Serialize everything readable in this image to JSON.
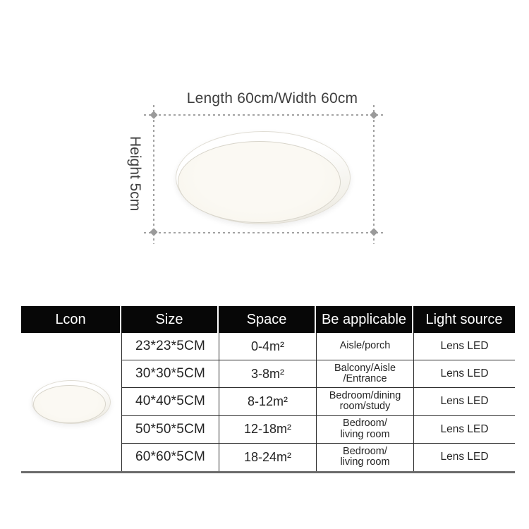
{
  "diagram": {
    "length_label": "Length 60cm/Width 60cm",
    "height_label": "Height 5cm",
    "image": "ceiling-lamp",
    "dash_color": "#a2a2a2",
    "marker_color": "#9a9a9a"
  },
  "table": {
    "headers": [
      "Lcon",
      "Size",
      "Space",
      "Be applicable",
      "Light source"
    ],
    "icon_cell_icon": "ceiling-lamp",
    "rows": [
      {
        "size": "23*23*5CM",
        "space": "0-4m²",
        "applicable": "Aisle/porch",
        "light": "Lens LED"
      },
      {
        "size": "30*30*5CM",
        "space": "3-8m²",
        "applicable": "Balcony/Aisle\n/Entrance",
        "light": "Lens LED"
      },
      {
        "size": "40*40*5CM",
        "space": "8-12m²",
        "applicable": "Bedroom/dining\nroom/study",
        "light": "Lens LED"
      },
      {
        "size": "50*50*5CM",
        "space": "12-18m²",
        "applicable": "Bedroom/\nliving room",
        "light": "Lens LED"
      },
      {
        "size": "60*60*5CM",
        "space": "18-24m²",
        "applicable": "Bedroom/\nliving room",
        "light": "Lens LED"
      }
    ],
    "colors": {
      "header_bg": "#070707",
      "header_text": "#ffffff",
      "grid_line": "#2b2b2b",
      "bottom_rule": "#6b6b6b"
    }
  }
}
